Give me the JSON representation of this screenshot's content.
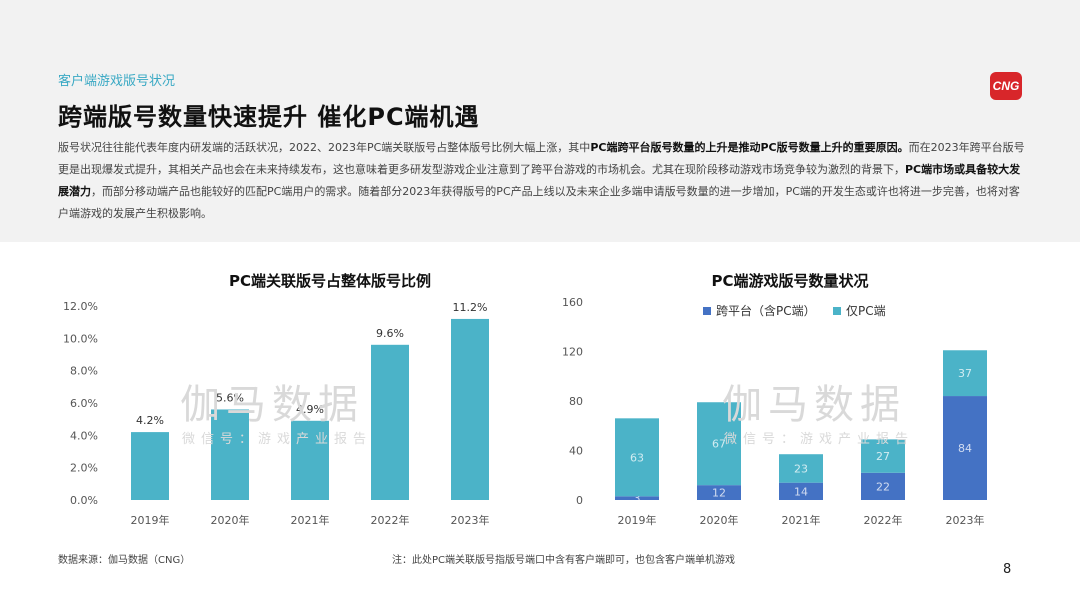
{
  "header": {
    "subtitle": "客户端游戏版号状况",
    "title": "跨端版号数量快速提升  催化PC端机遇",
    "logo_text": "CNG",
    "paragraph": [
      {
        "t": "版号状况往往能代表年度内研发端的活跃状况，2022、2023年PC端关联版号占整体版号比例大幅上涨，其中",
        "b": false
      },
      {
        "t": "PC端跨平台版号数量的上升是推动PC版号数量上升的重要原因。",
        "b": true
      },
      {
        "t": "而在2023年跨平台版号更是出现爆发式提升，其相关产品也会在未来持续发布，这也意味着更多研发型游戏企业注意到了跨平台游戏的市场机会。尤其在现阶段移动游戏市场竞争较为激烈的背景下，",
        "b": false
      },
      {
        "t": "PC端市场或具备较大发展潜力",
        "b": true
      },
      {
        "t": "，而部分移动端产品也能较好的匹配PC端用户的需求。随着部分2023年获得版号的PC产品上线以及未来企业多端申请版号数量的进一步增加，PC端的开发生态或许也将进一步完善，也将对客户端游戏的发展产生积极影响。",
        "b": false
      }
    ]
  },
  "watermark": {
    "main": "伽马数据",
    "sub": "微信号：游戏产业报告"
  },
  "colors": {
    "teal": "#4bb3c8",
    "blue": "#4472c4",
    "accent": "#3aa9c4",
    "logo": "#d8262a"
  },
  "chart_data": [
    {
      "type": "bar",
      "title": "PC端关联版号占整体版号比例",
      "categories": [
        "2019年",
        "2020年",
        "2021年",
        "2022年",
        "2023年"
      ],
      "values": [
        4.2,
        5.6,
        4.9,
        9.6,
        11.2
      ],
      "value_labels": [
        "4.2%",
        "5.6%",
        "4.9%",
        "9.6%",
        "11.2%"
      ],
      "yticks": [
        "0.0%",
        "2.0%",
        "4.0%",
        "6.0%",
        "8.0%",
        "10.0%",
        "12.0%"
      ],
      "ylim": [
        0,
        12
      ],
      "grid": false,
      "legend": "none"
    },
    {
      "type": "bar",
      "stacked": true,
      "title": "PC端游戏版号数量状况",
      "categories": [
        "2019年",
        "2020年",
        "2021年",
        "2022年",
        "2023年"
      ],
      "series": [
        {
          "name": "跨平台（含PC端）",
          "values": [
            3,
            12,
            14,
            22,
            84
          ]
        },
        {
          "name": "仅PC端",
          "values": [
            63,
            67,
            23,
            27,
            37
          ]
        }
      ],
      "yticks": [
        "0",
        "40",
        "80",
        "120",
        "160"
      ],
      "ylim": [
        0,
        160
      ],
      "grid": false,
      "legend": "top"
    }
  ],
  "footer": {
    "source": "数据来源：伽马数据（CNG）",
    "note": "注：此处PC端关联版号指版号端口中含有客户端即可，也包含客户端单机游戏",
    "page": "8"
  }
}
